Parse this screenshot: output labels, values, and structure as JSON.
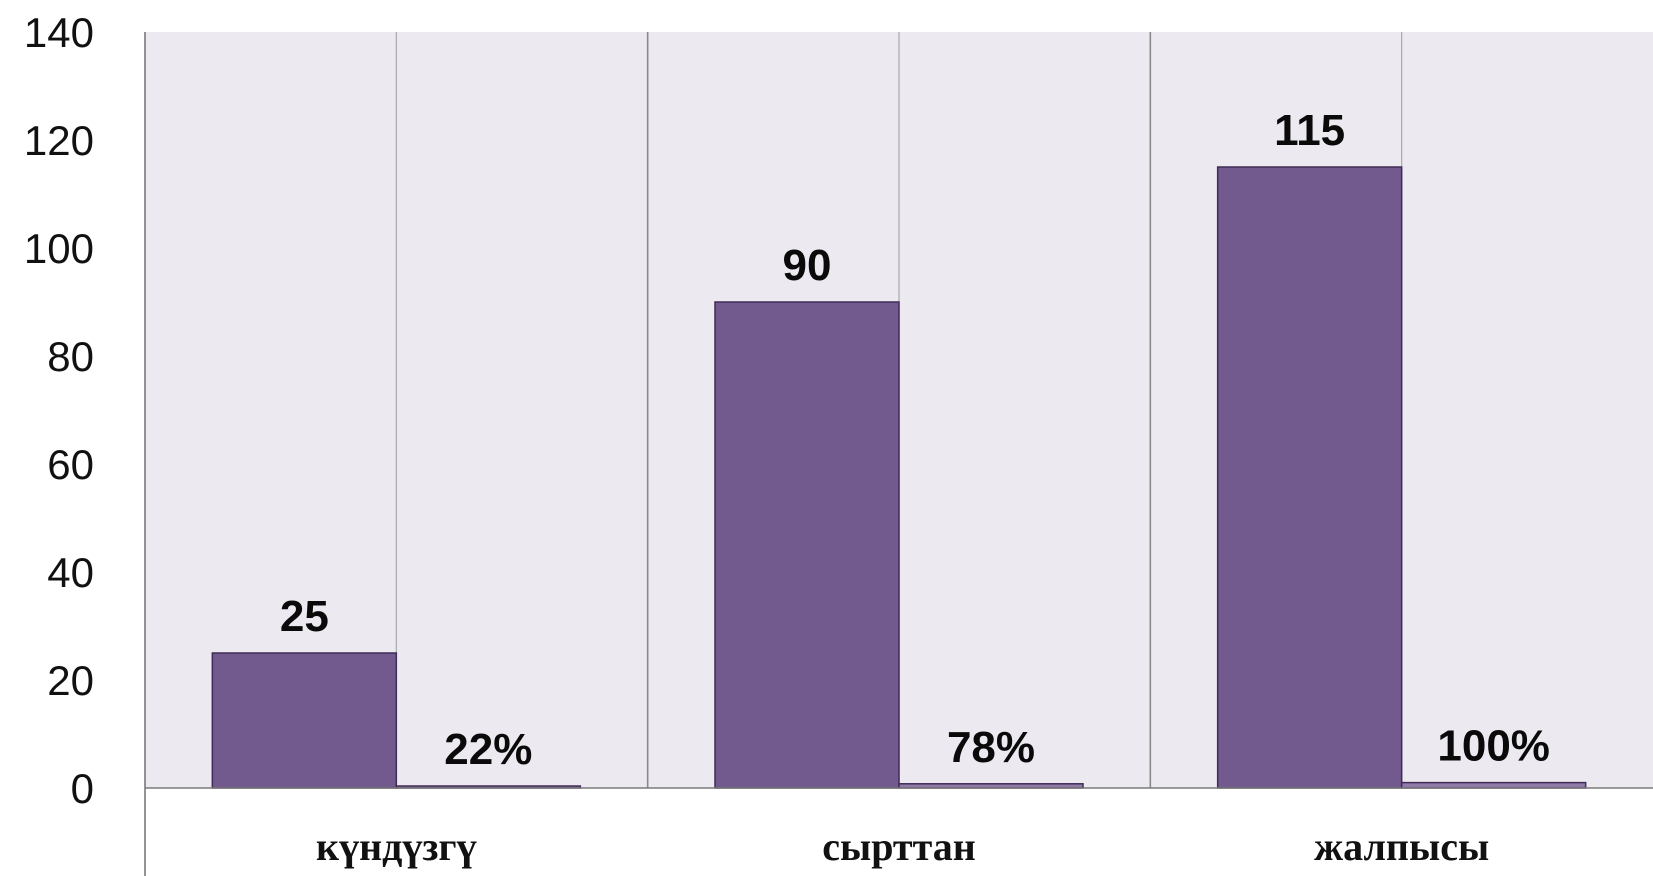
{
  "chart_data": {
    "type": "bar",
    "categories": [
      "күндүзгү",
      "сырттан",
      "жалпысы"
    ],
    "series": [
      {
        "values": [
          25,
          90,
          115
        ],
        "labels": [
          "25",
          "90",
          "115"
        ],
        "color": "#72598e"
      },
      {
        "values": [
          0.22,
          0.78,
          1.0
        ],
        "labels": [
          "22%",
          "78%",
          "100%"
        ],
        "color": "#8f7aa8"
      }
    ],
    "ylim": [
      0,
      140
    ],
    "yticks": [
      0,
      20,
      40,
      60,
      80,
      100,
      120,
      140
    ],
    "ytick_labels": [
      "0",
      "20",
      "40",
      "60",
      "80",
      "100",
      "120",
      "140"
    ],
    "grid": true,
    "plot_background": "#ece9f0",
    "gridline_color": "#9a9a9a"
  }
}
